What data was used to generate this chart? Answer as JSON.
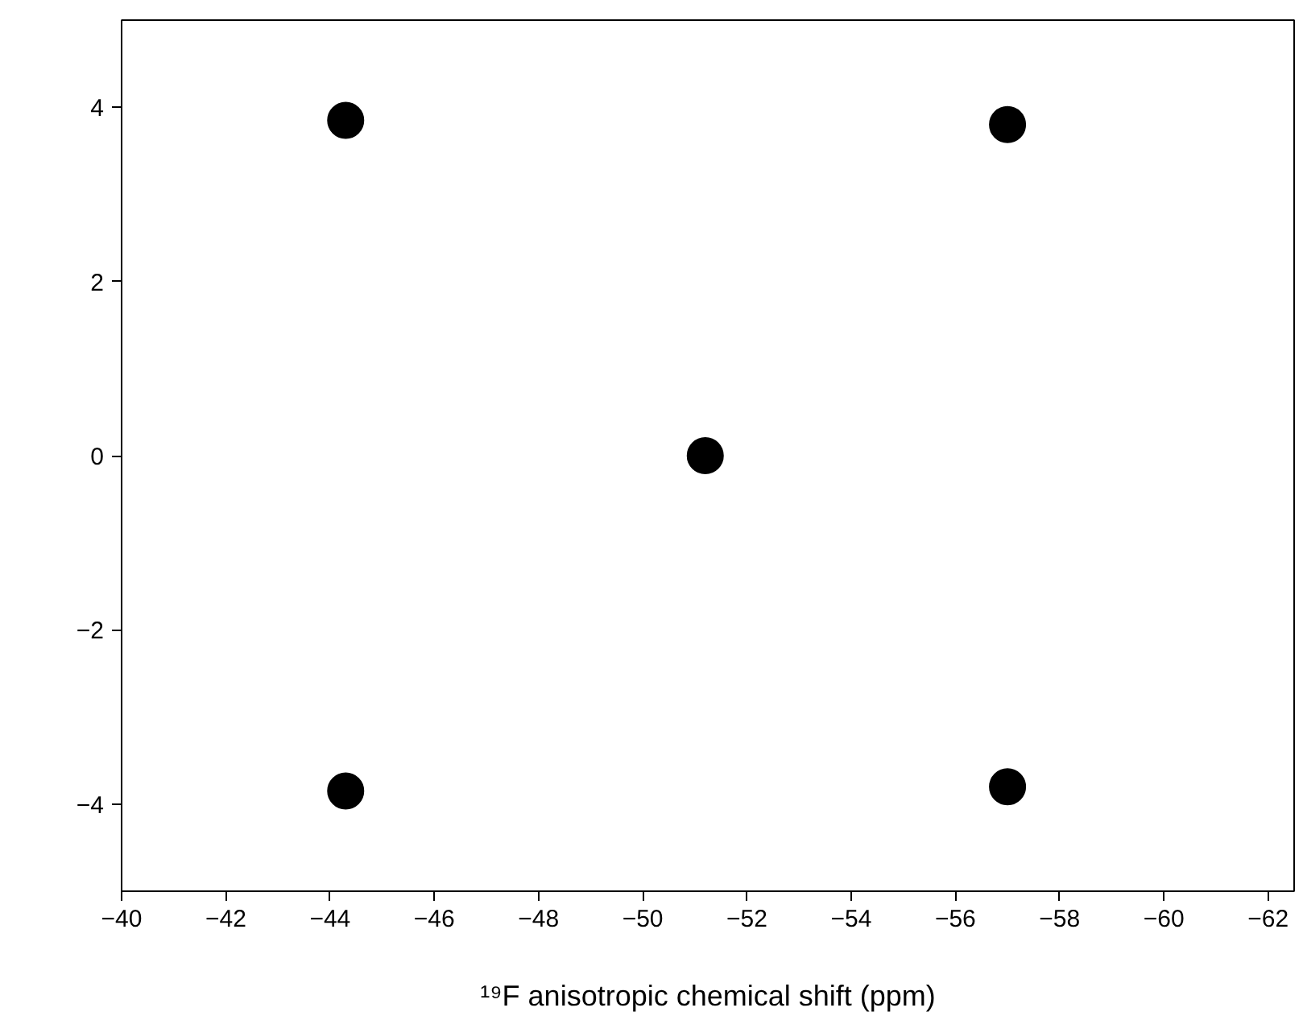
{
  "chart_data": {
    "type": "scatter",
    "xlabel": "¹⁹F anisotropic chemical shift (ppm)",
    "x": [
      -44.3,
      -57.0,
      -51.2,
      -44.3,
      -57.0
    ],
    "values": [
      3.85,
      3.8,
      0,
      -3.85,
      -3.8
    ],
    "color": "#000000",
    "marker": "circle",
    "xlim": [
      -40,
      -62.5
    ],
    "ylim": [
      -5,
      5
    ],
    "xticks": [
      -40,
      -42,
      -44,
      -46,
      -48,
      -50,
      -52,
      -54,
      -56,
      -58,
      -60,
      -62
    ],
    "yticks": [
      -4,
      -2,
      0,
      2,
      4
    ],
    "grid": false
  }
}
